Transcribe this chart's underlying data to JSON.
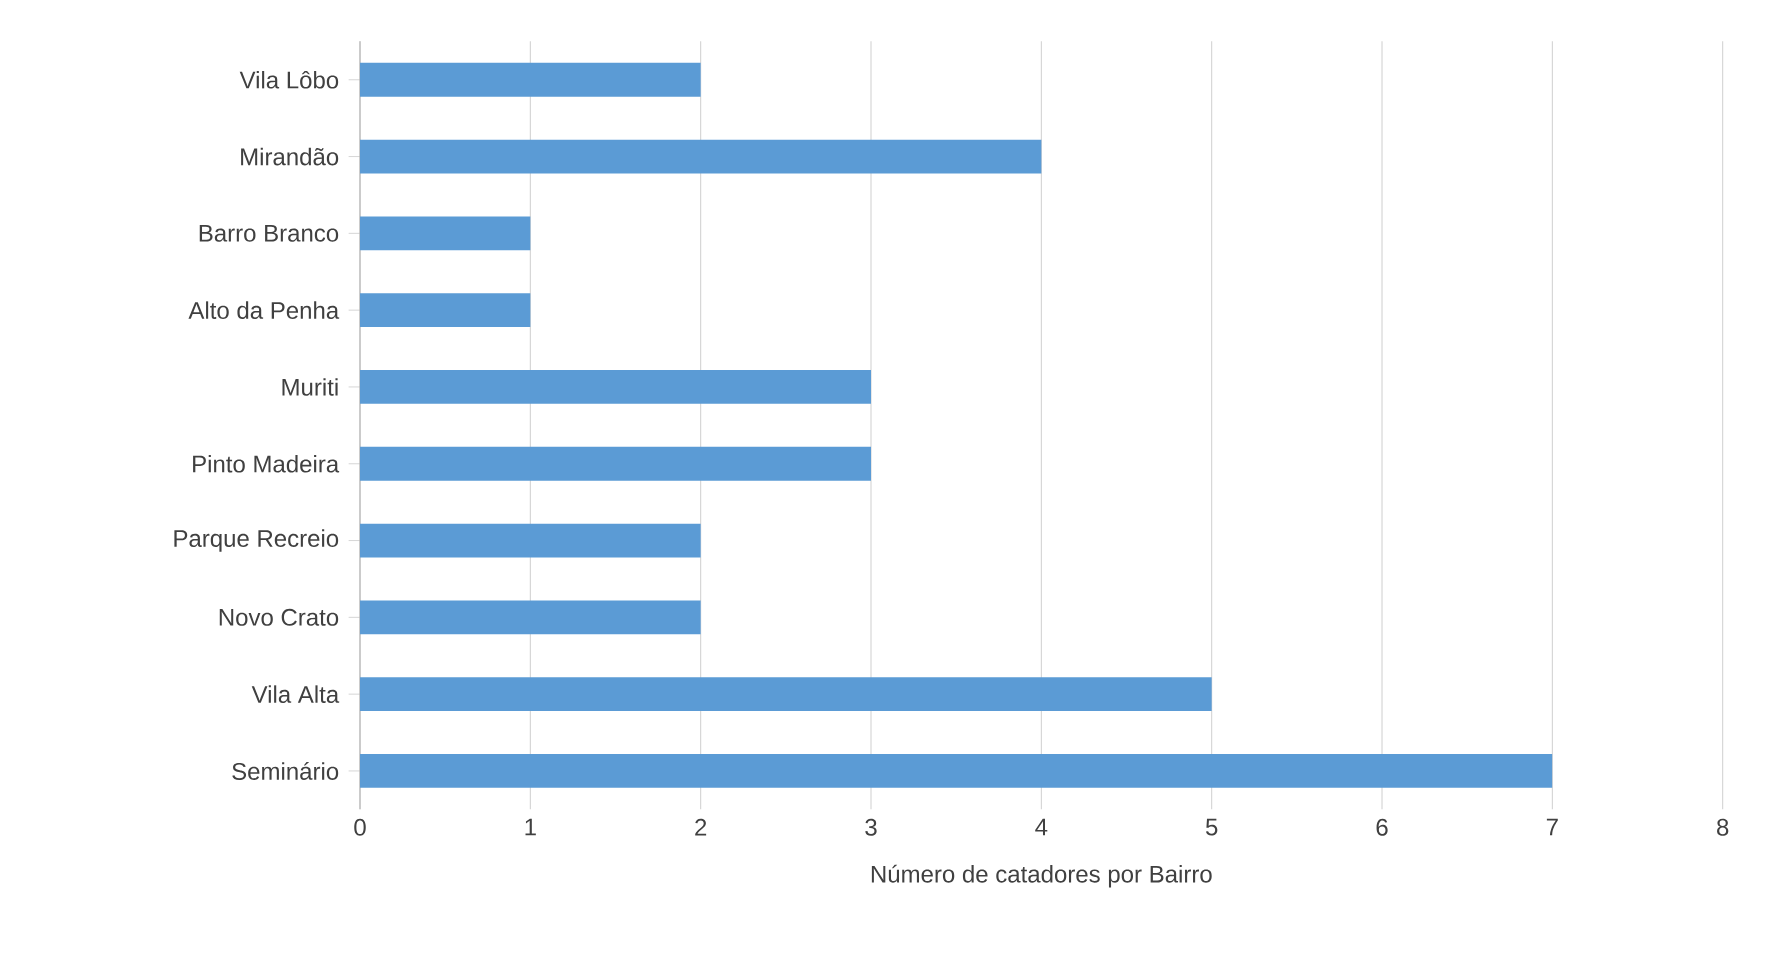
{
  "chart_data": {
    "type": "bar",
    "orientation": "horizontal",
    "xlabel": "Número  de catadores por Bairro",
    "categories": [
      "Vila Lôbo",
      "Mirandão",
      "Barro Branco",
      "Alto da Penha",
      "Muriti",
      "Pinto Madeira",
      "Parque Recreio",
      "Novo Crato",
      "Vila Alta",
      "Seminário"
    ],
    "values": [
      2,
      4,
      1,
      1,
      3,
      3,
      2,
      2,
      5,
      7
    ],
    "color": "#5b9bd5",
    "xlim": [
      0,
      8
    ],
    "xticks": [
      0,
      1,
      2,
      3,
      4,
      5,
      6,
      7,
      8
    ],
    "grid": "x"
  }
}
